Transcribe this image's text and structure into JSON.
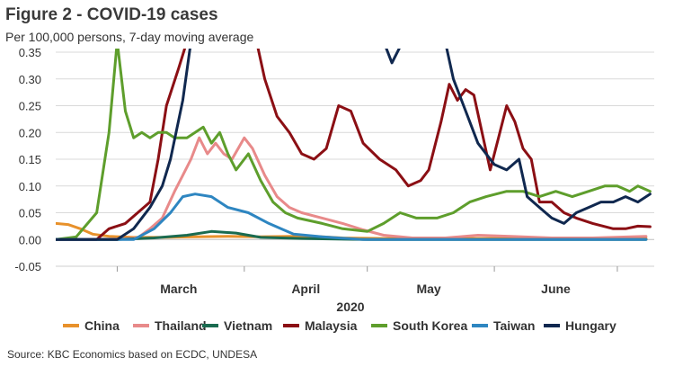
{
  "chart_data": {
    "type": "line",
    "title": "Figure 2 - COVID-19 cases",
    "subtitle": "Per 100,000 persons, 7-day moving average",
    "xlabel": "2020",
    "ylabel": "",
    "ylim": [
      -0.05,
      0.35
    ],
    "yticks": [
      -0.05,
      0.0,
      0.05,
      0.1,
      0.15,
      0.2,
      0.25,
      0.3,
      0.35
    ],
    "ytick_labels": [
      "-0.05",
      "0.00",
      "0.05",
      "0.10",
      "0.15",
      "0.20",
      "0.25",
      "0.30",
      "0.35"
    ],
    "xlim": [
      "2020-02-15",
      "2020-07-10"
    ],
    "xticks": [
      "Mar",
      "Apr",
      "May",
      "Jun"
    ],
    "xticks_dates": [
      "2020-03-01",
      "2020-04-01",
      "2020-05-01",
      "2020-06-01",
      "2020-07-01"
    ],
    "x_tick_labels": [
      {
        "label": "March",
        "date": "2020-03-16"
      },
      {
        "label": "April",
        "date": "2020-04-16"
      },
      {
        "label": "May",
        "date": "2020-05-16"
      },
      {
        "label": "June",
        "date": "2020-06-16"
      }
    ],
    "grid": "horizontal",
    "legend": "bottom",
    "series": [
      {
        "name": "China",
        "color": "#E8912B",
        "points": [
          [
            "2020-02-15",
            0.03
          ],
          [
            "2020-02-18",
            0.028
          ],
          [
            "2020-02-21",
            0.02
          ],
          [
            "2020-02-24",
            0.01
          ],
          [
            "2020-02-28",
            0.006
          ],
          [
            "2020-03-05",
            0.004
          ],
          [
            "2020-03-12",
            0.004
          ],
          [
            "2020-03-20",
            0.005
          ],
          [
            "2020-03-28",
            0.006
          ],
          [
            "2020-04-05",
            0.005
          ],
          [
            "2020-04-12",
            0.006
          ],
          [
            "2020-04-18",
            0.006
          ],
          [
            "2020-04-25",
            0.003
          ],
          [
            "2020-05-05",
            0.002
          ],
          [
            "2020-05-20",
            0.002
          ],
          [
            "2020-06-05",
            0.002
          ],
          [
            "2020-06-20",
            0.002
          ],
          [
            "2020-07-08",
            0.002
          ]
        ]
      },
      {
        "name": "Thailand",
        "color": "#E88A8A",
        "points": [
          [
            "2020-02-15",
            0.0
          ],
          [
            "2020-03-01",
            0.001
          ],
          [
            "2020-03-06",
            0.003
          ],
          [
            "2020-03-09",
            0.02
          ],
          [
            "2020-03-12",
            0.04
          ],
          [
            "2020-03-15",
            0.09
          ],
          [
            "2020-03-17",
            0.12
          ],
          [
            "2020-03-19",
            0.15
          ],
          [
            "2020-03-21",
            0.19
          ],
          [
            "2020-03-23",
            0.16
          ],
          [
            "2020-03-25",
            0.18
          ],
          [
            "2020-03-27",
            0.16
          ],
          [
            "2020-03-29",
            0.15
          ],
          [
            "2020-04-01",
            0.19
          ],
          [
            "2020-04-03",
            0.17
          ],
          [
            "2020-04-06",
            0.12
          ],
          [
            "2020-04-09",
            0.08
          ],
          [
            "2020-04-12",
            0.06
          ],
          [
            "2020-04-15",
            0.05
          ],
          [
            "2020-04-20",
            0.04
          ],
          [
            "2020-04-25",
            0.03
          ],
          [
            "2020-04-30",
            0.018
          ],
          [
            "2020-05-05",
            0.008
          ],
          [
            "2020-05-12",
            0.003
          ],
          [
            "2020-05-20",
            0.003
          ],
          [
            "2020-05-28",
            0.008
          ],
          [
            "2020-06-05",
            0.006
          ],
          [
            "2020-06-15",
            0.003
          ],
          [
            "2020-06-25",
            0.003
          ],
          [
            "2020-07-08",
            0.006
          ]
        ]
      },
      {
        "name": "Vietnam",
        "color": "#1A6B50",
        "points": [
          [
            "2020-02-15",
            0.0
          ],
          [
            "2020-03-01",
            0.0
          ],
          [
            "2020-03-10",
            0.003
          ],
          [
            "2020-03-18",
            0.008
          ],
          [
            "2020-03-24",
            0.015
          ],
          [
            "2020-03-30",
            0.012
          ],
          [
            "2020-04-05",
            0.004
          ],
          [
            "2020-04-15",
            0.002
          ],
          [
            "2020-05-01",
            0.0
          ],
          [
            "2020-06-01",
            0.0
          ],
          [
            "2020-07-08",
            0.0
          ]
        ]
      },
      {
        "name": "Malaysia",
        "color": "#8B0F14",
        "points": [
          [
            "2020-02-15",
            0.0
          ],
          [
            "2020-02-25",
            0.0
          ],
          [
            "2020-02-28",
            0.02
          ],
          [
            "2020-03-03",
            0.03
          ],
          [
            "2020-03-06",
            0.05
          ],
          [
            "2020-03-09",
            0.07
          ],
          [
            "2020-03-11",
            0.15
          ],
          [
            "2020-03-13",
            0.25
          ],
          [
            "2020-03-16",
            0.32
          ],
          [
            "2020-03-18",
            0.37
          ],
          [
            "2020-04-04",
            0.37
          ],
          [
            "2020-04-06",
            0.3
          ],
          [
            "2020-04-09",
            0.23
          ],
          [
            "2020-04-12",
            0.2
          ],
          [
            "2020-04-15",
            0.16
          ],
          [
            "2020-04-18",
            0.15
          ],
          [
            "2020-04-21",
            0.17
          ],
          [
            "2020-04-24",
            0.25
          ],
          [
            "2020-04-27",
            0.24
          ],
          [
            "2020-04-30",
            0.18
          ],
          [
            "2020-05-04",
            0.15
          ],
          [
            "2020-05-08",
            0.13
          ],
          [
            "2020-05-11",
            0.1
          ],
          [
            "2020-05-14",
            0.11
          ],
          [
            "2020-05-16",
            0.13
          ],
          [
            "2020-05-19",
            0.22
          ],
          [
            "2020-05-21",
            0.29
          ],
          [
            "2020-05-23",
            0.26
          ],
          [
            "2020-05-25",
            0.28
          ],
          [
            "2020-05-27",
            0.27
          ],
          [
            "2020-05-29",
            0.2
          ],
          [
            "2020-05-31",
            0.13
          ],
          [
            "2020-06-02",
            0.19
          ],
          [
            "2020-06-04",
            0.25
          ],
          [
            "2020-06-06",
            0.22
          ],
          [
            "2020-06-08",
            0.17
          ],
          [
            "2020-06-10",
            0.15
          ],
          [
            "2020-06-12",
            0.07
          ],
          [
            "2020-06-15",
            0.07
          ],
          [
            "2020-06-18",
            0.05
          ],
          [
            "2020-06-21",
            0.04
          ],
          [
            "2020-06-25",
            0.03
          ],
          [
            "2020-06-30",
            0.02
          ],
          [
            "2020-07-03",
            0.02
          ],
          [
            "2020-07-06",
            0.025
          ],
          [
            "2020-07-09",
            0.024
          ]
        ]
      },
      {
        "name": "South Korea",
        "color": "#5E9E2C",
        "points": [
          [
            "2020-02-15",
            0.0
          ],
          [
            "2020-02-20",
            0.005
          ],
          [
            "2020-02-25",
            0.05
          ],
          [
            "2020-02-28",
            0.2
          ],
          [
            "2020-03-01",
            0.37
          ],
          [
            "2020-03-03",
            0.24
          ],
          [
            "2020-03-05",
            0.19
          ],
          [
            "2020-03-07",
            0.2
          ],
          [
            "2020-03-09",
            0.19
          ],
          [
            "2020-03-11",
            0.2
          ],
          [
            "2020-03-13",
            0.2
          ],
          [
            "2020-03-15",
            0.19
          ],
          [
            "2020-03-18",
            0.19
          ],
          [
            "2020-03-20",
            0.2
          ],
          [
            "2020-03-22",
            0.21
          ],
          [
            "2020-03-24",
            0.18
          ],
          [
            "2020-03-26",
            0.2
          ],
          [
            "2020-03-28",
            0.16
          ],
          [
            "2020-03-30",
            0.13
          ],
          [
            "2020-04-02",
            0.16
          ],
          [
            "2020-04-05",
            0.11
          ],
          [
            "2020-04-08",
            0.07
          ],
          [
            "2020-04-11",
            0.05
          ],
          [
            "2020-04-14",
            0.04
          ],
          [
            "2020-04-20",
            0.03
          ],
          [
            "2020-04-25",
            0.02
          ],
          [
            "2020-05-01",
            0.015
          ],
          [
            "2020-05-05",
            0.03
          ],
          [
            "2020-05-09",
            0.05
          ],
          [
            "2020-05-13",
            0.04
          ],
          [
            "2020-05-18",
            0.04
          ],
          [
            "2020-05-22",
            0.05
          ],
          [
            "2020-05-26",
            0.07
          ],
          [
            "2020-05-30",
            0.08
          ],
          [
            "2020-06-04",
            0.09
          ],
          [
            "2020-06-08",
            0.09
          ],
          [
            "2020-06-12",
            0.08
          ],
          [
            "2020-06-16",
            0.09
          ],
          [
            "2020-06-20",
            0.08
          ],
          [
            "2020-06-24",
            0.09
          ],
          [
            "2020-06-28",
            0.1
          ],
          [
            "2020-07-01",
            0.1
          ],
          [
            "2020-07-04",
            0.09
          ],
          [
            "2020-07-06",
            0.1
          ],
          [
            "2020-07-09",
            0.09
          ]
        ]
      },
      {
        "name": "Taiwan",
        "color": "#2E86C1",
        "points": [
          [
            "2020-02-15",
            0.0
          ],
          [
            "2020-03-05",
            0.0
          ],
          [
            "2020-03-10",
            0.02
          ],
          [
            "2020-03-14",
            0.05
          ],
          [
            "2020-03-17",
            0.08
          ],
          [
            "2020-03-20",
            0.085
          ],
          [
            "2020-03-24",
            0.08
          ],
          [
            "2020-03-28",
            0.06
          ],
          [
            "2020-04-02",
            0.05
          ],
          [
            "2020-04-07",
            0.03
          ],
          [
            "2020-04-13",
            0.01
          ],
          [
            "2020-04-20",
            0.005
          ],
          [
            "2020-04-30",
            0.0
          ],
          [
            "2020-06-01",
            0.0
          ],
          [
            "2020-07-08",
            0.0
          ]
        ]
      },
      {
        "name": "Hungary",
        "color": "#10284F",
        "points": [
          [
            "2020-02-15",
            0.0
          ],
          [
            "2020-03-01",
            0.0
          ],
          [
            "2020-03-05",
            0.02
          ],
          [
            "2020-03-09",
            0.06
          ],
          [
            "2020-03-12",
            0.1
          ],
          [
            "2020-03-14",
            0.15
          ],
          [
            "2020-03-17",
            0.26
          ],
          [
            "2020-03-19",
            0.37
          ],
          [
            "2020-05-05",
            0.37
          ],
          [
            "2020-05-07",
            0.33
          ],
          [
            "2020-05-09",
            0.36
          ],
          [
            "2020-05-11",
            0.37
          ],
          [
            "2020-05-20",
            0.37
          ],
          [
            "2020-05-22",
            0.3
          ],
          [
            "2020-05-25",
            0.24
          ],
          [
            "2020-05-28",
            0.18
          ],
          [
            "2020-06-01",
            0.14
          ],
          [
            "2020-06-04",
            0.13
          ],
          [
            "2020-06-07",
            0.15
          ],
          [
            "2020-06-09",
            0.08
          ],
          [
            "2020-06-12",
            0.06
          ],
          [
            "2020-06-15",
            0.04
          ],
          [
            "2020-06-18",
            0.03
          ],
          [
            "2020-06-21",
            0.05
          ],
          [
            "2020-06-24",
            0.06
          ],
          [
            "2020-06-27",
            0.07
          ],
          [
            "2020-06-30",
            0.07
          ],
          [
            "2020-07-03",
            0.08
          ],
          [
            "2020-07-06",
            0.07
          ],
          [
            "2020-07-09",
            0.085
          ]
        ]
      }
    ]
  },
  "source": "Source: KBC Economics based on ECDC, UNDESA"
}
